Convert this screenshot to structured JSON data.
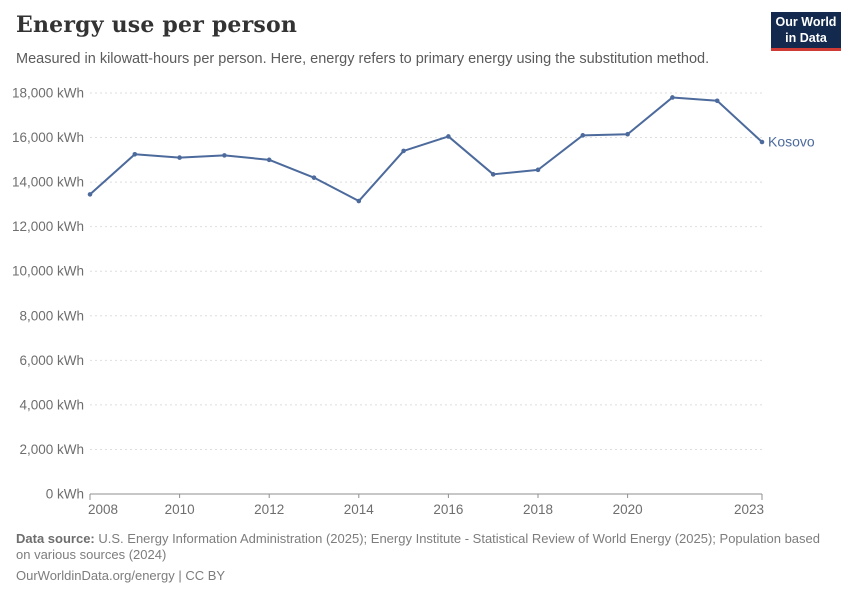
{
  "header": {
    "title": "Energy use per person",
    "subtitle": "Measured in kilowatt-hours per person. Here, energy refers to primary energy using the substitution method."
  },
  "logo": {
    "line1": "Our World",
    "line2": "in Data",
    "background_color": "#13294e",
    "bar_color": "#cf3a34"
  },
  "chart_data": {
    "type": "line",
    "title": "Energy use per person",
    "xlabel": "",
    "ylabel": "kWh",
    "xlim": [
      2008,
      2023
    ],
    "ylim": [
      0,
      18000
    ],
    "grid": "horizontal-dashed",
    "legend_position": "end-of-line-label",
    "x": [
      2008,
      2009,
      2010,
      2011,
      2012,
      2013,
      2014,
      2015,
      2016,
      2017,
      2018,
      2019,
      2020,
      2021,
      2022,
      2023
    ],
    "series": [
      {
        "name": "Kosovo",
        "color": "#4C6A9C",
        "values": [
          13450,
          15250,
          15100,
          15200,
          15000,
          14200,
          13150,
          15400,
          16050,
          14350,
          14550,
          16100,
          16150,
          17800,
          17650,
          15800
        ]
      }
    ],
    "xticks": [
      {
        "year": 2008,
        "label": "2008"
      },
      {
        "year": 2010,
        "label": "2010"
      },
      {
        "year": 2012,
        "label": "2012"
      },
      {
        "year": 2014,
        "label": "2014"
      },
      {
        "year": 2016,
        "label": "2016"
      },
      {
        "year": 2018,
        "label": "2018"
      },
      {
        "year": 2020,
        "label": "2020"
      },
      {
        "year": 2023,
        "label": "2023"
      }
    ],
    "yticks": [
      {
        "value": 0,
        "label": "0 kWh"
      },
      {
        "value": 2000,
        "label": "2,000 kWh"
      },
      {
        "value": 4000,
        "label": "4,000 kWh"
      },
      {
        "value": 6000,
        "label": "6,000 kWh"
      },
      {
        "value": 8000,
        "label": "8,000 kWh"
      },
      {
        "value": 10000,
        "label": "10,000 kWh"
      },
      {
        "value": 12000,
        "label": "12,000 kWh"
      },
      {
        "value": 14000,
        "label": "14,000 kWh"
      },
      {
        "value": 16000,
        "label": "16,000 kWh"
      },
      {
        "value": 18000,
        "label": "18,000 kWh"
      }
    ],
    "colors": {
      "gridline": "#dedede",
      "axis_line": "#8f8f8f",
      "tick_label": "#6e6e6e"
    }
  },
  "footer": {
    "source_label": "Data source:",
    "source_line1": "U.S. Energy Information Administration (2025); Energy Institute - Statistical Review of World Energy (2025); Population based",
    "source_line2": "on various sources (2024)",
    "license": "OurWorldinData.org/energy | CC BY"
  }
}
